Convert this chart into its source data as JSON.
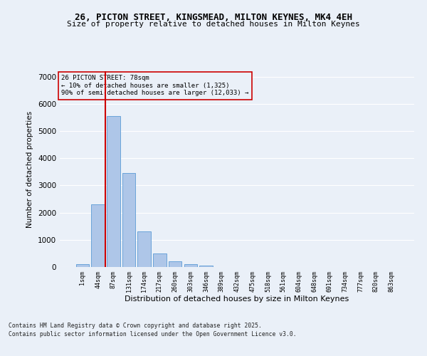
{
  "title_line1": "26, PICTON STREET, KINGSMEAD, MILTON KEYNES, MK4 4EH",
  "title_line2": "Size of property relative to detached houses in Milton Keynes",
  "xlabel": "Distribution of detached houses by size in Milton Keynes",
  "ylabel": "Number of detached properties",
  "categories": [
    "1sqm",
    "44sqm",
    "87sqm",
    "131sqm",
    "174sqm",
    "217sqm",
    "260sqm",
    "303sqm",
    "346sqm",
    "389sqm",
    "432sqm",
    "475sqm",
    "518sqm",
    "561sqm",
    "604sqm",
    "648sqm",
    "691sqm",
    "734sqm",
    "777sqm",
    "820sqm",
    "863sqm"
  ],
  "bar_heights": [
    110,
    2300,
    5550,
    3450,
    1300,
    500,
    200,
    100,
    55,
    0,
    0,
    0,
    0,
    0,
    0,
    0,
    0,
    0,
    0,
    0,
    0
  ],
  "bar_color": "#aec6e8",
  "bar_edge_color": "#5b9bd5",
  "annotation_title": "26 PICTON STREET: 78sqm",
  "annotation_line1": "← 10% of detached houses are smaller (1,325)",
  "annotation_line2": "90% of semi-detached houses are larger (12,033) →",
  "vline_color": "#cc0000",
  "annotation_box_edge": "#cc0000",
  "ylim": [
    0,
    7200
  ],
  "yticks": [
    0,
    1000,
    2000,
    3000,
    4000,
    5000,
    6000,
    7000
  ],
  "bg_color": "#eaf0f8",
  "grid_color": "#ffffff",
  "title_fontsize": 9,
  "subtitle_fontsize": 8,
  "footer_line1": "Contains HM Land Registry data © Crown copyright and database right 2025.",
  "footer_line2": "Contains public sector information licensed under the Open Government Licence v3.0.",
  "bar_width": 0.85
}
